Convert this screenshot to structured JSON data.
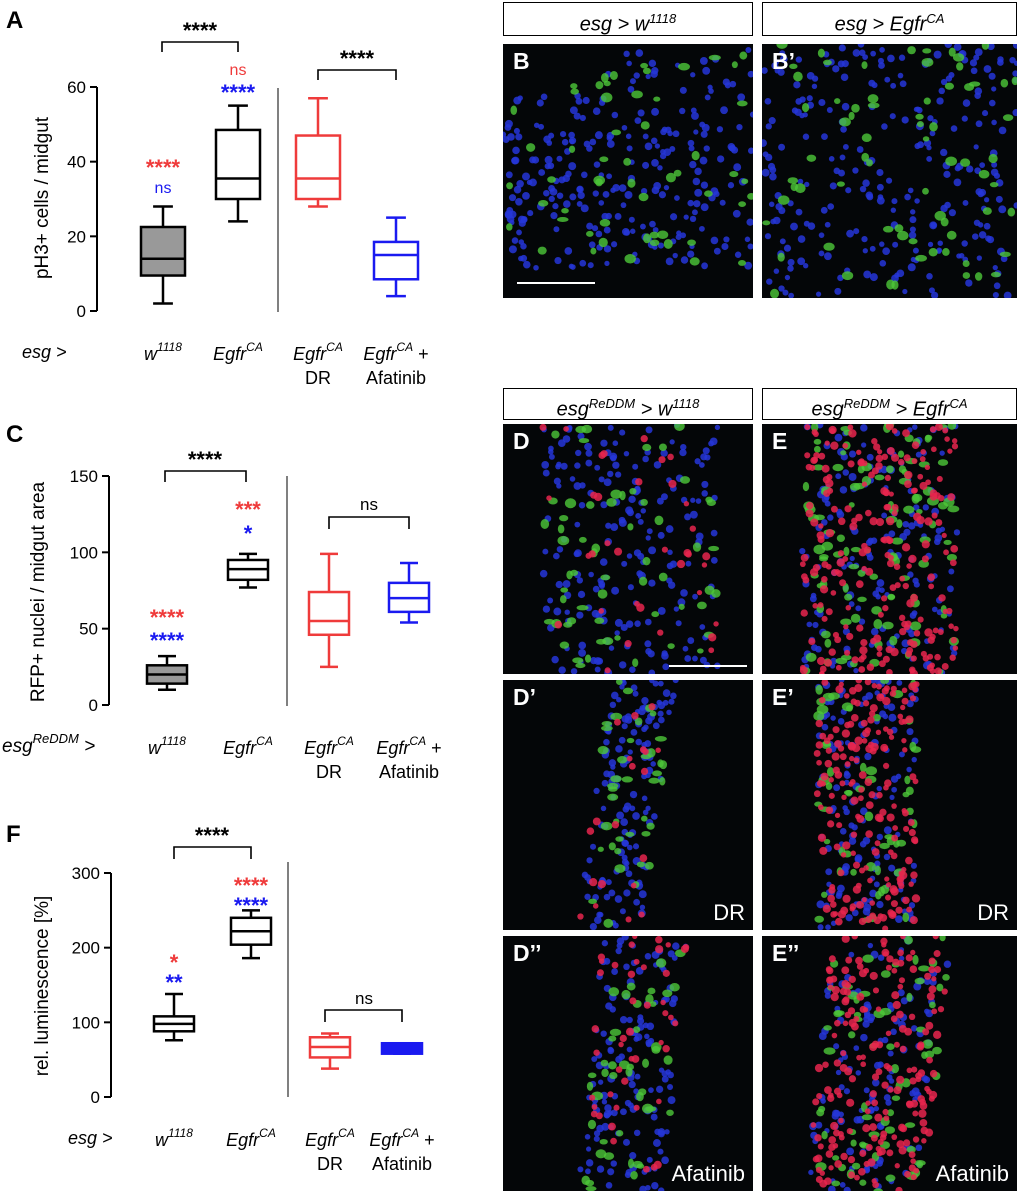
{
  "colors": {
    "control": "#000000",
    "dr": "#ef3b3b",
    "afatinib": "#1a1af0",
    "grey_fill": "#999999",
    "nucleus_blue": "#2636d8",
    "esg_green": "#4ec83a",
    "rfp_red": "#e8264e"
  },
  "panels": {
    "A": {
      "label": "A",
      "ylabel": "pH3+ cells / midgut",
      "driver": "esg >",
      "significance": {
        "bracket_left": "****",
        "bracket_right": "****",
        "g1_red": "****",
        "g1_blue": "ns",
        "g2_red": "ns",
        "g2_blue": "****"
      }
    },
    "C": {
      "label": "C",
      "ylabel": "RFP+ nuclei / midgut area",
      "driver_base": "esg",
      "driver_sup": "ReDDM",
      "driver_tail": " >",
      "significance": {
        "bracket_left": "****",
        "bracket_right": "ns",
        "g1_red": "****",
        "g1_blue": "****",
        "g2_red": "***",
        "g2_blue": "*"
      }
    },
    "F": {
      "label": "F",
      "ylabel": "rel. luminescence [%]",
      "driver": "esg >",
      "significance": {
        "bracket_left": "****",
        "bracket_right": "ns",
        "g1_red": "*",
        "g1_blue": "**",
        "g2_red": "****",
        "g2_blue": "****"
      }
    },
    "groups": {
      "g1_base": "w",
      "g1_sup": "1118",
      "g2_base": "Egfr",
      "g2_sup": "CA",
      "g3_base": "Egfr",
      "g3_sup": "CA",
      "g3_line2": "DR",
      "g4_base": "Egfr",
      "g4_sup": "CA",
      "g4_tail": " +",
      "g4_line2": "Afatinib"
    }
  },
  "chart_data": [
    {
      "type": "box",
      "panel": "A",
      "ylabel": "pH3+ cells / midgut",
      "ylim": [
        0,
        60
      ],
      "yticks": [
        0,
        20,
        40,
        60
      ],
      "categories": [
        "w1118",
        "EgfrCA",
        "EgfrCA DR",
        "EgfrCA + Afatinib"
      ],
      "boxes": [
        {
          "min": 2,
          "q1": 9.5,
          "median": 14,
          "q3": 22.5,
          "max": 28,
          "color": "#000000",
          "fill": "#999999"
        },
        {
          "min": 24,
          "q1": 30,
          "median": 35.5,
          "q3": 48.5,
          "max": 55,
          "color": "#000000",
          "fill": "none"
        },
        {
          "min": 28,
          "q1": 30,
          "median": 35.5,
          "q3": 47,
          "max": 57,
          "color": "#ef3b3b",
          "fill": "none"
        },
        {
          "min": 4,
          "q1": 8.5,
          "median": 15,
          "q3": 18.5,
          "max": 25,
          "color": "#1a1af0",
          "fill": "none"
        }
      ]
    },
    {
      "type": "box",
      "panel": "C",
      "ylabel": "RFP+ nuclei / midgut area",
      "ylim": [
        0,
        150
      ],
      "yticks": [
        0,
        50,
        100,
        150
      ],
      "categories": [
        "w1118",
        "EgfrCA",
        "EgfrCA DR",
        "EgfrCA + Afatinib"
      ],
      "boxes": [
        {
          "min": 10,
          "q1": 14,
          "median": 20,
          "q3": 26,
          "max": 32,
          "color": "#000000",
          "fill": "#999999"
        },
        {
          "min": 77,
          "q1": 82,
          "median": 89,
          "q3": 95,
          "max": 99,
          "color": "#000000",
          "fill": "none"
        },
        {
          "min": 25,
          "q1": 46,
          "median": 55,
          "q3": 74,
          "max": 99,
          "color": "#ef3b3b",
          "fill": "none"
        },
        {
          "min": 54,
          "q1": 61,
          "median": 70,
          "q3": 80,
          "max": 93,
          "color": "#1a1af0",
          "fill": "none"
        }
      ]
    },
    {
      "type": "box",
      "panel": "F",
      "ylabel": "rel. luminescence [%]",
      "ylim": [
        0,
        300
      ],
      "yticks": [
        0,
        100,
        200,
        300
      ],
      "categories": [
        "w1118",
        "EgfrCA",
        "EgfrCA DR",
        "EgfrCA + Afatinib"
      ],
      "boxes": [
        {
          "min": 76,
          "q1": 88,
          "median": 98,
          "q3": 108,
          "max": 138,
          "color": "#000000",
          "fill": "none"
        },
        {
          "min": 186,
          "q1": 204,
          "median": 222,
          "q3": 240,
          "max": 250,
          "color": "#000000",
          "fill": "none"
        },
        {
          "min": 38,
          "q1": 53,
          "median": 67,
          "q3": 80,
          "max": 85,
          "color": "#ef3b3b",
          "fill": "none"
        },
        {
          "min": 58,
          "q1": 58,
          "median": 65,
          "q3": 72,
          "max": 72,
          "color": "#1a1af0",
          "fill": "#1a1af0"
        }
      ]
    }
  ],
  "micrographs": {
    "top_headers": {
      "left_base": "esg > w",
      "left_sup": "1118",
      "right_base": "esg > Egfr",
      "right_sup": "CA"
    },
    "bottom_headers": {
      "left_a": "esg",
      "left_sup1": "ReDDM",
      "left_b": " > w",
      "left_sup2": "1118",
      "right_a": "esg",
      "right_sup1": "ReDDM",
      "right_b": " > Egfr",
      "right_sup2": "CA"
    },
    "labels": {
      "B": "B",
      "B2": "B’",
      "D": "D",
      "D2": "D’",
      "D3": "D’’",
      "E": "E",
      "E2": "E’",
      "E3": "E’’"
    },
    "corner_labels": {
      "D2": "DR",
      "E2": "DR",
      "D3": "Afatinib",
      "E3": "Afatinib"
    }
  }
}
